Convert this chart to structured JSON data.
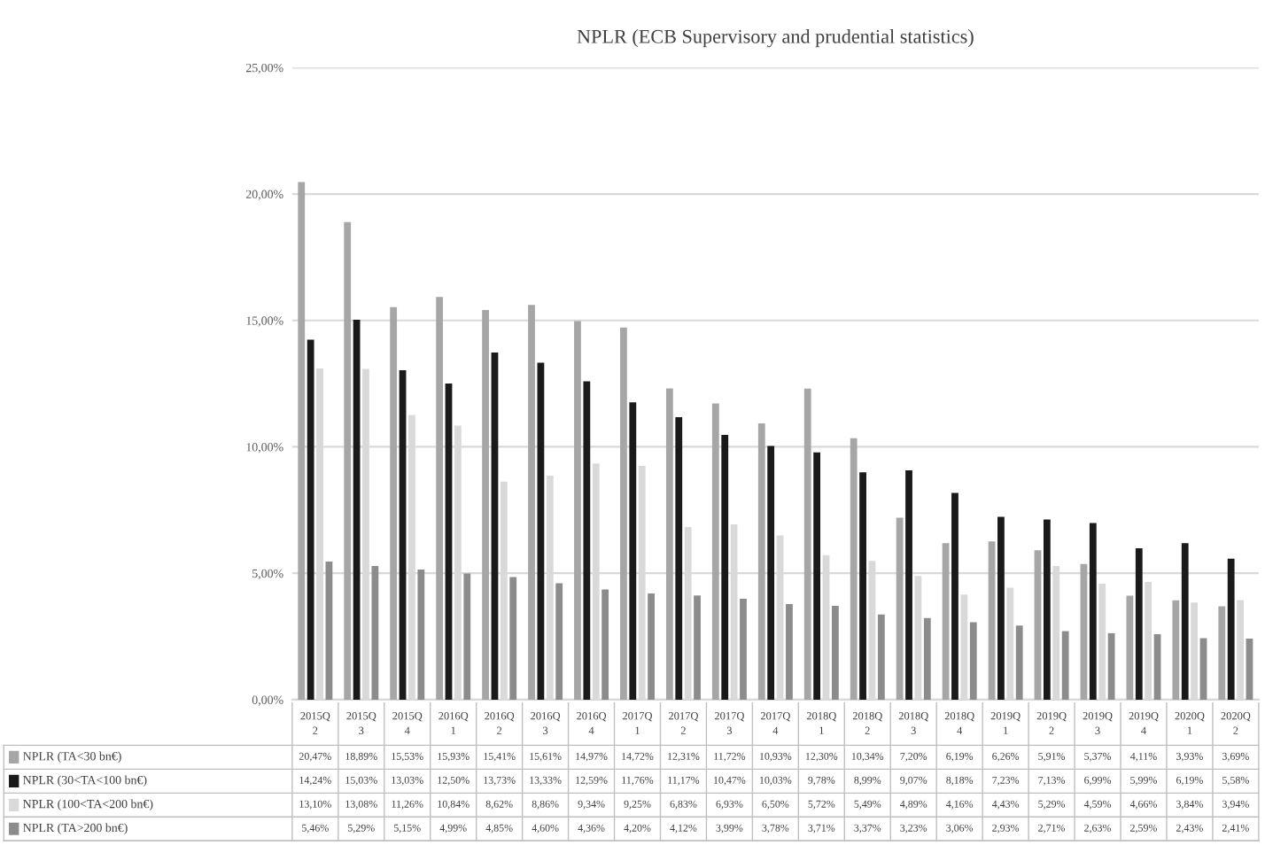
{
  "chart_data": {
    "type": "bar",
    "title": "NPLR (ECB Supervisory and prudential statistics)",
    "categories": [
      "2015Q\n2",
      "2015Q\n3",
      "2015Q\n4",
      "2016Q\n1",
      "2016Q\n2",
      "2016Q\n3",
      "2016Q\n4",
      "2017Q\n1",
      "2017Q\n2",
      "2017Q\n3",
      "2017Q\n4",
      "2018Q\n1",
      "2018Q\n2",
      "2018Q\n3",
      "2018Q\n4",
      "2019Q\n1",
      "2019Q\n2",
      "2019Q\n3",
      "2019Q\n4",
      "2020Q\n1",
      "2020Q\n2"
    ],
    "series": [
      {
        "name": "NPLR (TA<30 bn€)",
        "color": "#a6a6a6",
        "values": [
          20.47,
          18.89,
          15.53,
          15.93,
          15.41,
          15.61,
          14.97,
          14.72,
          12.31,
          11.72,
          10.93,
          12.3,
          10.34,
          7.2,
          6.19,
          6.26,
          5.91,
          5.37,
          4.11,
          3.93,
          3.69
        ],
        "value_labels": [
          "20,47%",
          "18,89%",
          "15,53%",
          "15,93%",
          "15,41%",
          "15,61%",
          "14,97%",
          "14,72%",
          "12,31%",
          "11,72%",
          "10,93%",
          "12,30%",
          "10,34%",
          "7,20%",
          "6,19%",
          "6,26%",
          "5,91%",
          "5,37%",
          "4,11%",
          "3,93%",
          "3,69%"
        ]
      },
      {
        "name": "NPLR (30<TA<100 bn€)",
        "color": "#1a1a1a",
        "values": [
          14.24,
          15.03,
          13.03,
          12.5,
          13.73,
          13.33,
          12.59,
          11.76,
          11.17,
          10.47,
          10.03,
          9.78,
          8.99,
          9.07,
          8.18,
          7.23,
          7.13,
          6.99,
          5.99,
          6.19,
          5.58
        ],
        "value_labels": [
          "14,24%",
          "15,03%",
          "13,03%",
          "12,50%",
          "13,73%",
          "13,33%",
          "12,59%",
          "11,76%",
          "11,17%",
          "10,47%",
          "10,03%",
          "9,78%",
          "8,99%",
          "9,07%",
          "8,18%",
          "7,23%",
          "7,13%",
          "6,99%",
          "5,99%",
          "6,19%",
          "5,58%"
        ]
      },
      {
        "name": "NPLR (100<TA<200 bn€)",
        "color": "#d9d9d9",
        "values": [
          13.1,
          13.08,
          11.26,
          10.84,
          8.62,
          8.86,
          9.34,
          9.25,
          6.83,
          6.93,
          6.5,
          5.72,
          5.49,
          4.89,
          4.16,
          4.43,
          5.29,
          4.59,
          4.66,
          3.84,
          3.94
        ],
        "value_labels": [
          "13,10%",
          "13,08%",
          "11,26%",
          "10,84%",
          "8,62%",
          "8,86%",
          "9,34%",
          "9,25%",
          "6,83%",
          "6,93%",
          "6,50%",
          "5,72%",
          "5,49%",
          "4,89%",
          "4,16%",
          "4,43%",
          "5,29%",
          "4,59%",
          "4,66%",
          "3,84%",
          "3,94%"
        ]
      },
      {
        "name": "NPLR (TA>200 bn€)",
        "color": "#8c8c8c",
        "values": [
          5.46,
          5.29,
          5.15,
          4.99,
          4.85,
          4.6,
          4.36,
          4.2,
          4.12,
          3.99,
          3.78,
          3.71,
          3.37,
          3.23,
          3.06,
          2.93,
          2.71,
          2.63,
          2.59,
          2.43,
          2.41
        ],
        "value_labels": [
          "5,46%",
          "5,29%",
          "5,15%",
          "4,99%",
          "4,85%",
          "4,60%",
          "4,36%",
          "4,20%",
          "4,12%",
          "3,99%",
          "3,78%",
          "3,71%",
          "3,37%",
          "3,23%",
          "3,06%",
          "2,93%",
          "2,71%",
          "2,63%",
          "2,59%",
          "2,43%",
          "2,41%"
        ]
      }
    ],
    "ylim": [
      0,
      25
    ],
    "yticks": [
      {
        "value": 0,
        "label": "0,00%"
      },
      {
        "value": 5,
        "label": "5,00%"
      },
      {
        "value": 10,
        "label": "10,00%"
      },
      {
        "value": 15,
        "label": "15,00%"
      },
      {
        "value": 20,
        "label": "20,00%"
      },
      {
        "value": 25,
        "label": "25,00%"
      }
    ],
    "grid": "y",
    "legend": "bottom"
  }
}
